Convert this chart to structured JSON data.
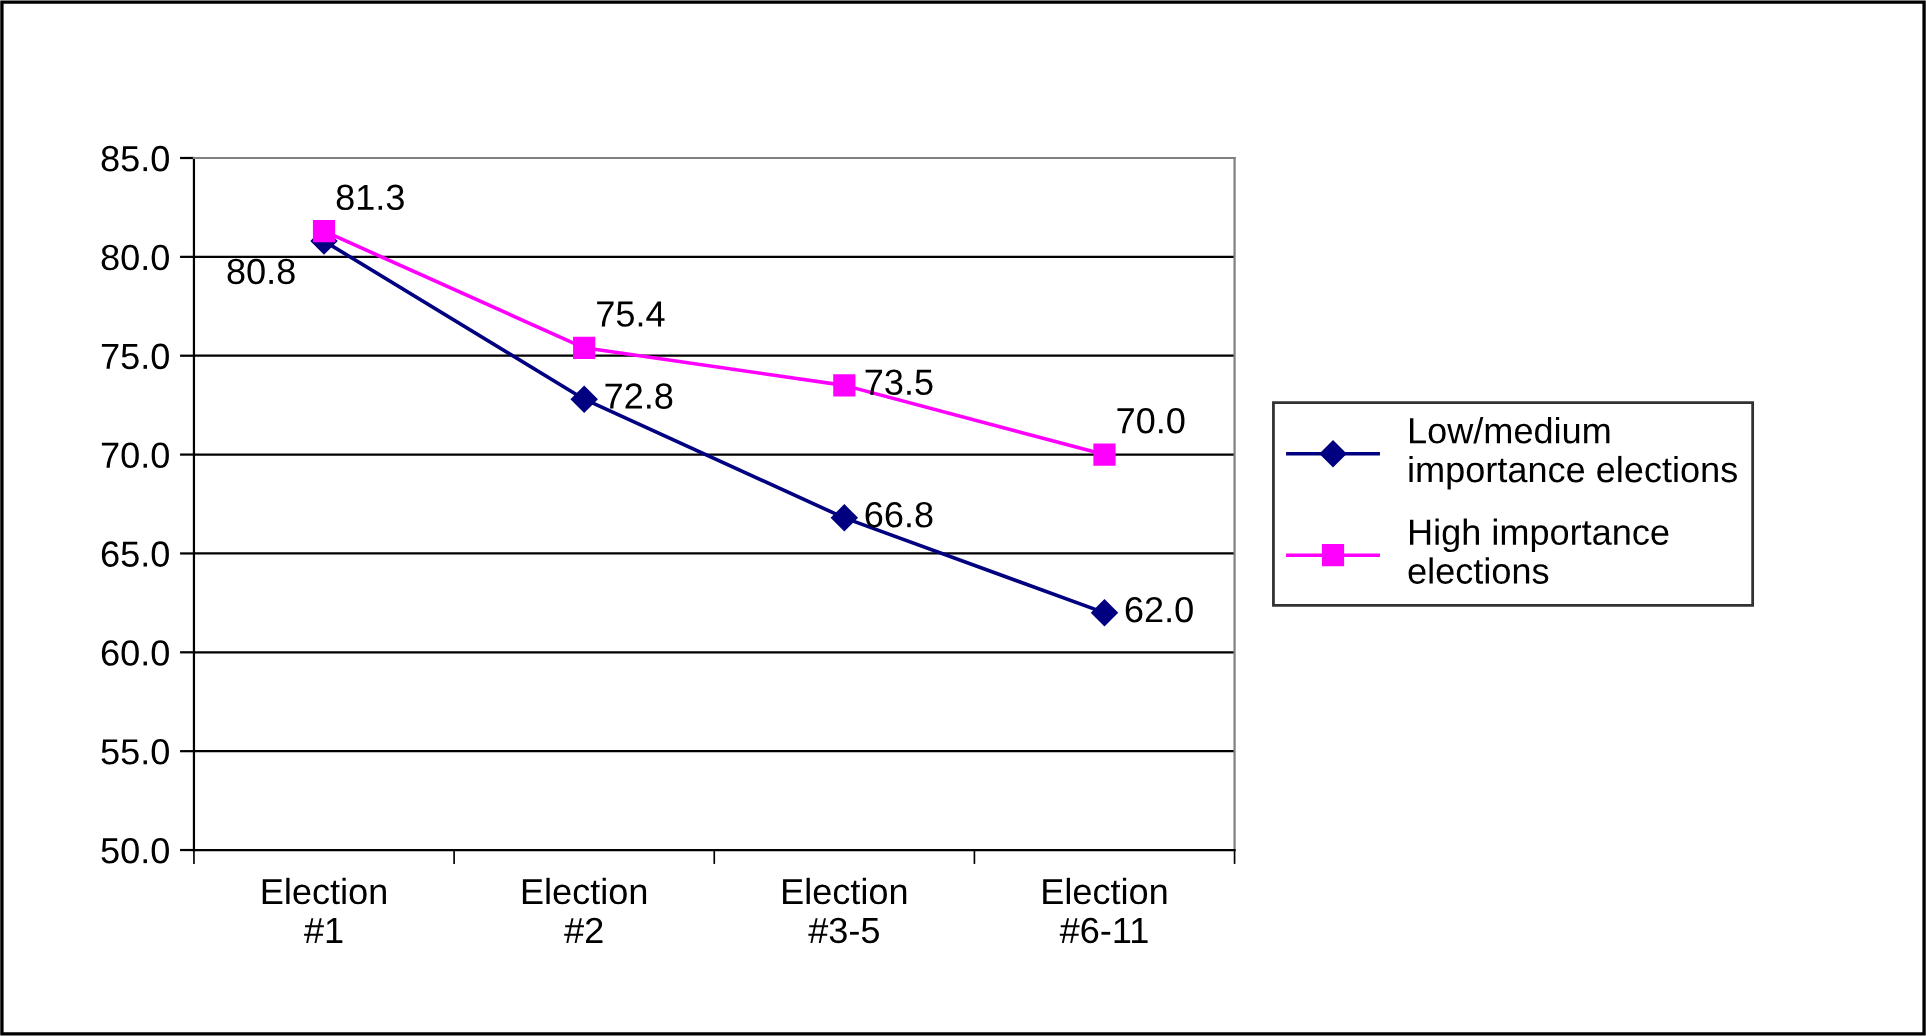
{
  "chart_data": {
    "type": "line",
    "categories": [
      "Election\n#1",
      "Election\n#2",
      "Election\n#3-5",
      "Election\n#6-11"
    ],
    "series": [
      {
        "name": "Low/medium\nimportance elections",
        "color": "#000080",
        "marker": "diamond",
        "values": [
          80.8,
          72.8,
          66.8,
          62.0
        ],
        "value_labels": [
          "80.8",
          "72.8",
          "66.8",
          "62.0"
        ]
      },
      {
        "name": "High importance\nelections",
        "color": "#ff00ff",
        "marker": "square",
        "values": [
          81.3,
          75.4,
          73.5,
          70.0
        ],
        "value_labels": [
          "81.3",
          "75.4",
          "73.5",
          "70.0"
        ]
      }
    ],
    "ylim": [
      50,
      85
    ],
    "yticks": [
      {
        "value": 50,
        "label": "50.0"
      },
      {
        "value": 55,
        "label": "55.0"
      },
      {
        "value": 60,
        "label": "60.0"
      },
      {
        "value": 65,
        "label": "65.0"
      },
      {
        "value": 70,
        "label": "70.0"
      },
      {
        "value": 75,
        "label": "75.0"
      },
      {
        "value": 80,
        "label": "80.0"
      },
      {
        "value": 85,
        "label": "85.0"
      }
    ],
    "grid": "y",
    "legend": "right",
    "line_style": "solid"
  }
}
